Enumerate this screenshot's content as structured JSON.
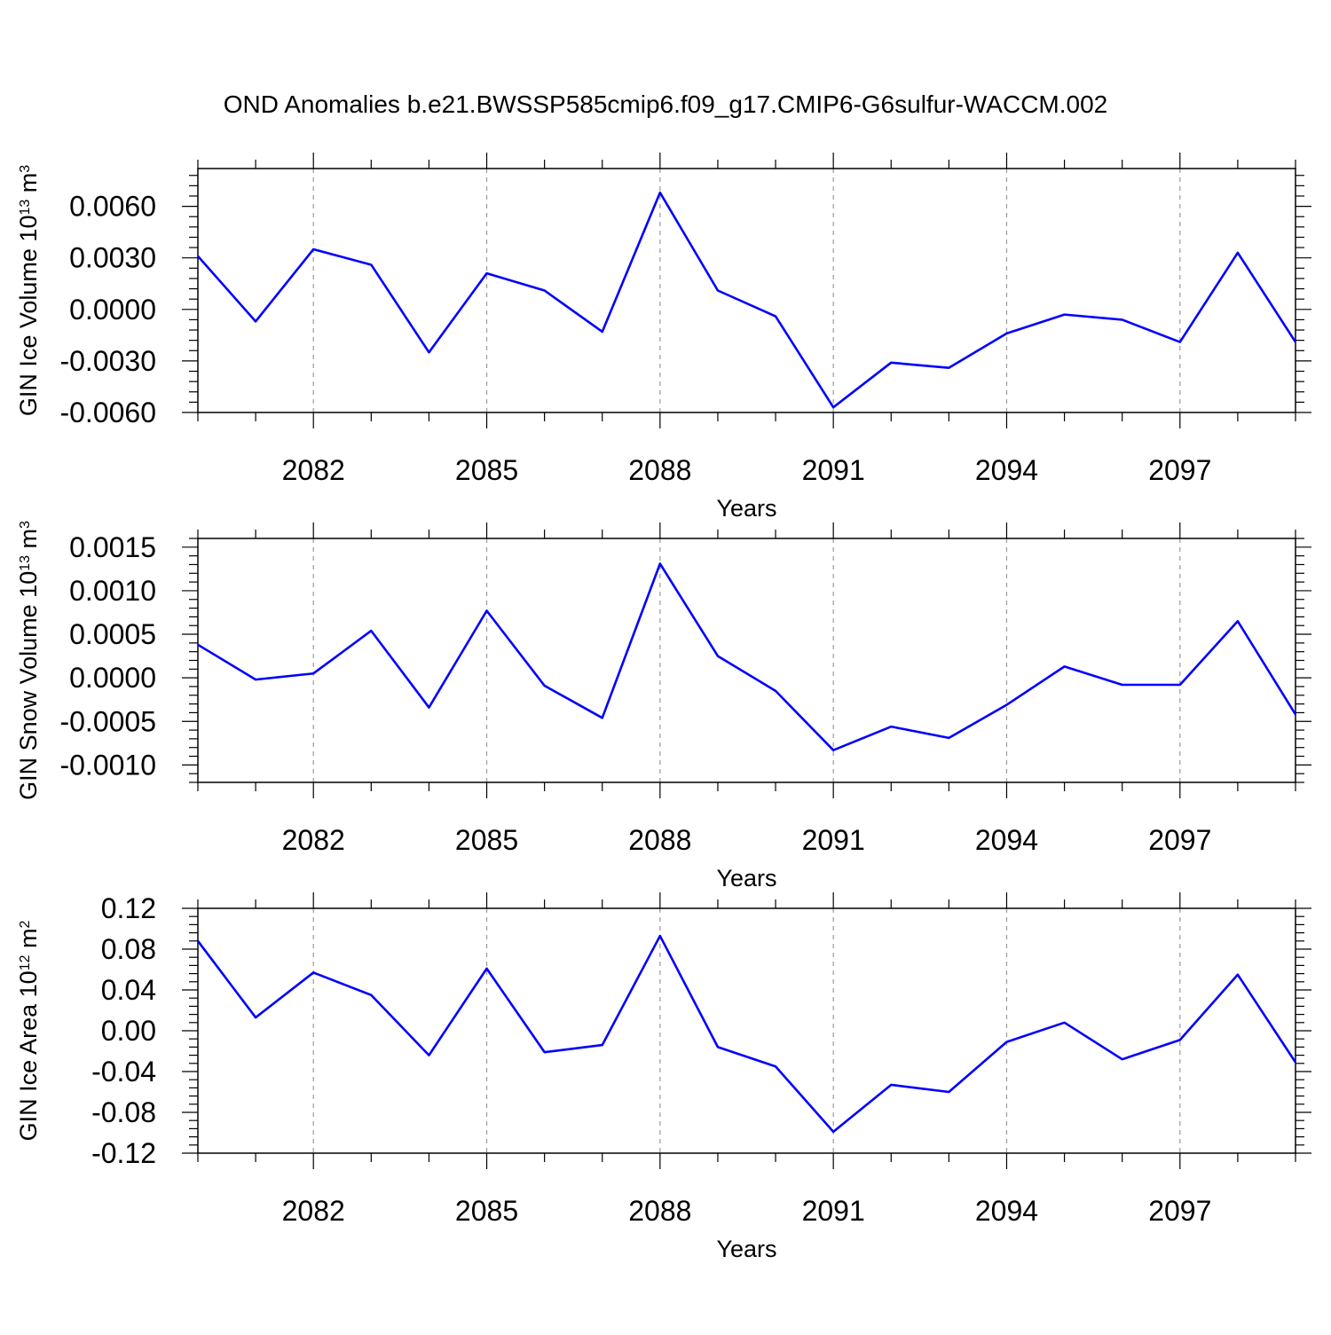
{
  "title": "OND Anomalies b.e21.BWSSP585cmip6.f09_g17.CMIP6-G6sulfur-WACCM.002",
  "line_color": "#0000ff",
  "chart_data": [
    {
      "type": "line",
      "ylabel": {
        "text": "GIN Ice Volume 10",
        "sup1": "13",
        "mid": " m",
        "sup2": "3"
      },
      "xlabel": "Years",
      "xlim": [
        2080,
        2099
      ],
      "ylim": [
        -0.006,
        0.006
      ],
      "y_display_max": 0.0082,
      "yticks": [
        -0.006,
        -0.003,
        0.0,
        0.003,
        0.006
      ],
      "ytick_labels": [
        "-0.0060",
        "-0.0030",
        "0.0000",
        "0.0030",
        "0.0060"
      ],
      "xticks": [
        2082,
        2085,
        2088,
        2091,
        2094,
        2097
      ],
      "xtick_labels": [
        "2082",
        "2085",
        "2088",
        "2091",
        "2094",
        "2097"
      ],
      "grid": "vertical dashed at major x ticks",
      "x": [
        2080,
        2081,
        2082,
        2083,
        2084,
        2085,
        2086,
        2087,
        2088,
        2089,
        2090,
        2091,
        2092,
        2093,
        2094,
        2095,
        2096,
        2097,
        2098,
        2099
      ],
      "values": [
        0.0031,
        -0.0007,
        0.0035,
        0.0026,
        -0.0025,
        0.0021,
        0.0011,
        -0.0013,
        0.0068,
        0.0011,
        -0.0004,
        -0.0057,
        -0.0031,
        -0.0034,
        -0.0014,
        -0.0003,
        -0.0006,
        -0.0019,
        0.0033,
        -0.0019
      ]
    },
    {
      "type": "line",
      "ylabel": {
        "text": "GIN Snow Volume 10",
        "sup1": "13",
        "mid": " m",
        "sup2": "3"
      },
      "xlabel": "Years",
      "xlim": [
        2080,
        2099
      ],
      "ylim": [
        -0.0012,
        0.0016
      ],
      "yticks": [
        -0.001,
        -0.0005,
        0.0,
        0.0005,
        0.001,
        0.0015
      ],
      "ytick_labels": [
        "-0.0010",
        "-0.0005",
        "0.0000",
        "0.0005",
        "0.0010",
        "0.0015"
      ],
      "xticks": [
        2082,
        2085,
        2088,
        2091,
        2094,
        2097
      ],
      "xtick_labels": [
        "2082",
        "2085",
        "2088",
        "2091",
        "2094",
        "2097"
      ],
      "grid": "vertical dashed at major x ticks",
      "x": [
        2080,
        2081,
        2082,
        2083,
        2084,
        2085,
        2086,
        2087,
        2088,
        2089,
        2090,
        2091,
        2092,
        2093,
        2094,
        2095,
        2096,
        2097,
        2098,
        2099
      ],
      "values": [
        0.00038,
        -2e-05,
        5e-05,
        0.00054,
        -0.00034,
        0.00077,
        -9e-05,
        -0.00046,
        0.00131,
        0.00025,
        -0.00015,
        -0.00083,
        -0.00056,
        -0.00069,
        -0.00031,
        0.00013,
        -8e-05,
        -8e-05,
        0.00065,
        -0.00042
      ]
    },
    {
      "type": "line",
      "ylabel": {
        "text": "GIN Ice Area 10",
        "sup1": "12",
        "mid": " m",
        "sup2": "2"
      },
      "xlabel": "Years",
      "xlim": [
        2080,
        2099
      ],
      "ylim": [
        -0.12,
        0.12
      ],
      "yticks": [
        -0.12,
        -0.08,
        -0.04,
        0.0,
        0.04,
        0.08,
        0.12
      ],
      "ytick_labels": [
        "-0.12",
        "-0.08",
        "-0.04",
        "0.00",
        "0.04",
        "0.08",
        "0.12"
      ],
      "xticks": [
        2082,
        2085,
        2088,
        2091,
        2094,
        2097
      ],
      "xtick_labels": [
        "2082",
        "2085",
        "2088",
        "2091",
        "2094",
        "2097"
      ],
      "grid": "vertical dashed at major x ticks",
      "x": [
        2080,
        2081,
        2082,
        2083,
        2084,
        2085,
        2086,
        2087,
        2088,
        2089,
        2090,
        2091,
        2092,
        2093,
        2094,
        2095,
        2096,
        2097,
        2098,
        2099
      ],
      "values": [
        0.088,
        0.013,
        0.057,
        0.035,
        -0.024,
        0.061,
        -0.021,
        -0.014,
        0.093,
        -0.016,
        -0.035,
        -0.099,
        -0.053,
        -0.06,
        -0.011,
        0.008,
        -0.028,
        -0.009,
        0.055,
        -0.031
      ]
    }
  ]
}
